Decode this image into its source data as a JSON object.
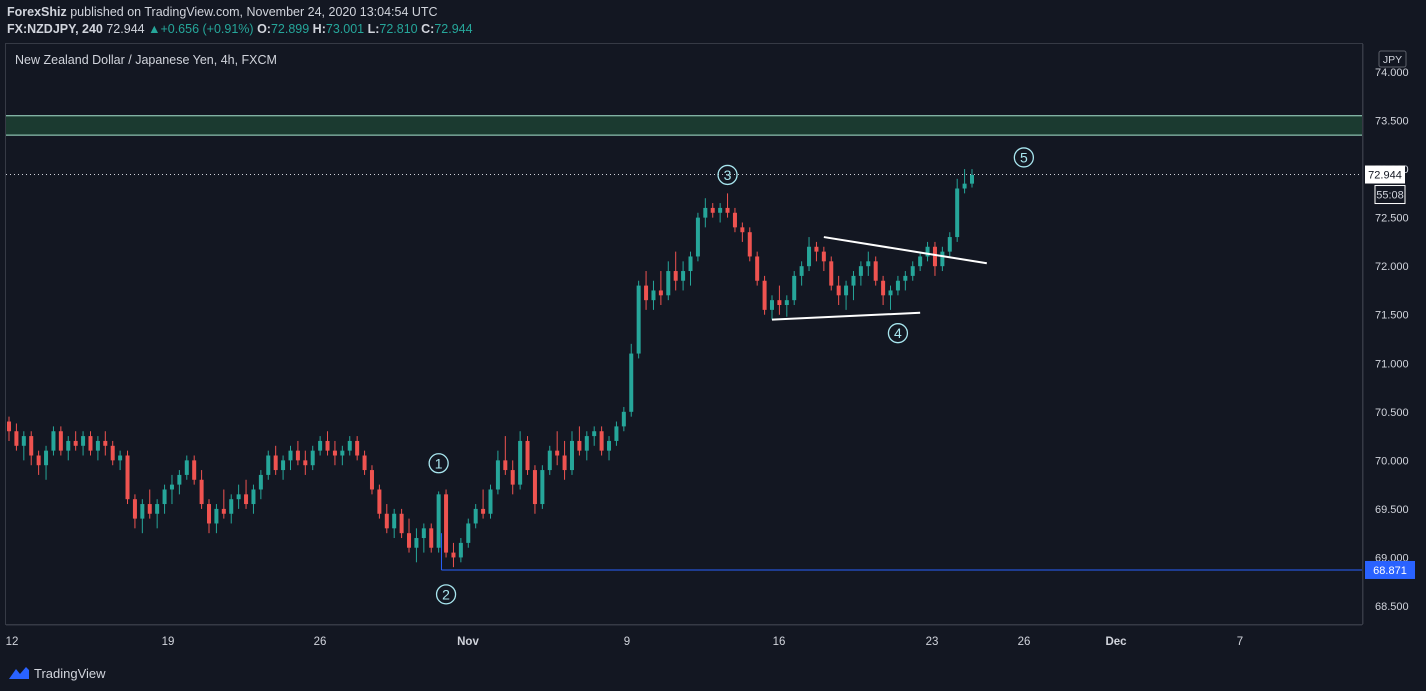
{
  "header": {
    "author": "ForexShiz",
    "published_text": "published on TradingView.com, November 24, 2020 13:04:54 UTC",
    "symbol": "FX:NZDJPY, 240",
    "last": "72.944",
    "change": "+0.656 (+0.91%)",
    "o_label": "O:",
    "o_value": "72.899",
    "h_label": "H:",
    "h_value": "73.001",
    "l_label": "L:",
    "l_value": "72.810",
    "c_label": "C:",
    "c_value": "72.944"
  },
  "chart_title": "New Zealand Dollar / Japanese Yen, 4h, FXCM",
  "footer": {
    "brand": "TradingView"
  },
  "colors": {
    "background": "#131722",
    "up": "#26a69a",
    "down": "#ef5350",
    "zone_fill": "#1b3a30",
    "zone_edge": "#a8e6cf",
    "support_line": "#2962ff",
    "wave_label": "#a8e6ef",
    "pattern_line": "#ffffff",
    "text": "#d1d4dc",
    "grid": "#363a45"
  },
  "chart_data": {
    "type": "candlestick",
    "title": "New Zealand Dollar / Japanese Yen, 4h, FXCM",
    "currency": "JPY",
    "y_ticks": [
      "74.000",
      "73.500",
      "73.000",
      "72.500",
      "72.000",
      "71.500",
      "71.000",
      "70.500",
      "70.000",
      "69.500",
      "69.000",
      "68.500"
    ],
    "ylim": [
      68.3,
      74.1
    ],
    "x_ticks": [
      "12",
      "19",
      "26",
      "Nov",
      "9",
      "16",
      "23",
      "26",
      "Dec",
      "7"
    ],
    "last_price": 72.944,
    "last_price_label": "72.944",
    "countdown_label": "55:08",
    "support_level": 68.871,
    "support_label": "68.871",
    "resistance_zone": [
      73.35,
      73.55
    ],
    "wave_labels": [
      {
        "label": "1",
        "price": 69.97
      },
      {
        "label": "2",
        "price": 68.62
      },
      {
        "label": "3",
        "price": 72.94
      },
      {
        "label": "4",
        "price": 71.31
      },
      {
        "label": "5",
        "price": 73.12
      }
    ],
    "triangle_upper_line": [
      72.3,
      72.03
    ],
    "triangle_lower_line": [
      71.45,
      71.52
    ],
    "candles_approx": [
      [
        70.4,
        70.45,
        70.2,
        70.3
      ],
      [
        70.3,
        70.38,
        70.1,
        70.15
      ],
      [
        70.15,
        70.3,
        70.0,
        70.25
      ],
      [
        70.25,
        70.3,
        69.95,
        70.05
      ],
      [
        70.05,
        70.1,
        69.85,
        69.95
      ],
      [
        69.95,
        70.15,
        69.8,
        70.1
      ],
      [
        70.1,
        70.35,
        70.05,
        70.3
      ],
      [
        70.3,
        70.35,
        70.05,
        70.1
      ],
      [
        70.1,
        70.25,
        70.0,
        70.2
      ],
      [
        70.2,
        70.3,
        70.1,
        70.15
      ],
      [
        70.15,
        70.3,
        70.05,
        70.25
      ],
      [
        70.25,
        70.3,
        70.05,
        70.1
      ],
      [
        70.1,
        70.25,
        70.0,
        70.2
      ],
      [
        70.2,
        70.3,
        70.05,
        70.15
      ],
      [
        70.15,
        70.2,
        69.95,
        70.0
      ],
      [
        70.0,
        70.1,
        69.9,
        70.05
      ],
      [
        70.05,
        70.1,
        69.55,
        69.6
      ],
      [
        69.6,
        69.65,
        69.3,
        69.4
      ],
      [
        69.4,
        69.6,
        69.25,
        69.55
      ],
      [
        69.55,
        69.7,
        69.4,
        69.45
      ],
      [
        69.45,
        69.6,
        69.3,
        69.55
      ],
      [
        69.55,
        69.75,
        69.45,
        69.7
      ],
      [
        69.7,
        69.85,
        69.55,
        69.75
      ],
      [
        69.75,
        69.9,
        69.65,
        69.85
      ],
      [
        69.85,
        70.05,
        69.8,
        70.0
      ],
      [
        70.0,
        70.05,
        69.75,
        69.8
      ],
      [
        69.8,
        69.9,
        69.5,
        69.55
      ],
      [
        69.55,
        69.6,
        69.25,
        69.35
      ],
      [
        69.35,
        69.55,
        69.25,
        69.5
      ],
      [
        69.5,
        69.7,
        69.4,
        69.45
      ],
      [
        69.45,
        69.65,
        69.35,
        69.6
      ],
      [
        69.6,
        69.75,
        69.5,
        69.65
      ],
      [
        69.65,
        69.8,
        69.5,
        69.55
      ],
      [
        69.55,
        69.75,
        69.45,
        69.7
      ],
      [
        69.7,
        69.9,
        69.6,
        69.85
      ],
      [
        69.85,
        70.1,
        69.8,
        70.05
      ],
      [
        70.05,
        70.15,
        69.85,
        69.9
      ],
      [
        69.9,
        70.05,
        69.8,
        70.0
      ],
      [
        70.0,
        70.15,
        69.9,
        70.1
      ],
      [
        70.1,
        70.2,
        69.95,
        70.0
      ],
      [
        70.0,
        70.1,
        69.85,
        69.95
      ],
      [
        69.95,
        70.15,
        69.9,
        70.1
      ],
      [
        70.1,
        70.25,
        70.05,
        70.2
      ],
      [
        70.2,
        70.3,
        70.05,
        70.1
      ],
      [
        70.1,
        70.2,
        69.95,
        70.05
      ],
      [
        70.05,
        70.15,
        69.95,
        70.1
      ],
      [
        70.1,
        70.25,
        70.05,
        70.2
      ],
      [
        70.2,
        70.25,
        70.0,
        70.05
      ],
      [
        70.05,
        70.1,
        69.85,
        69.9
      ],
      [
        69.9,
        69.95,
        69.65,
        69.7
      ],
      [
        69.7,
        69.75,
        69.4,
        69.45
      ],
      [
        69.45,
        69.55,
        69.25,
        69.3
      ],
      [
        69.3,
        69.5,
        69.2,
        69.45
      ],
      [
        69.45,
        69.5,
        69.2,
        69.25
      ],
      [
        69.25,
        69.4,
        69.05,
        69.1
      ],
      [
        69.1,
        69.3,
        68.95,
        69.2
      ],
      [
        69.2,
        69.35,
        69.05,
        69.3
      ],
      [
        69.3,
        69.35,
        69.05,
        69.1
      ],
      [
        69.1,
        69.68,
        69.05,
        69.65
      ],
      [
        69.65,
        69.7,
        69.0,
        69.05
      ],
      [
        69.05,
        69.15,
        68.9,
        69.0
      ],
      [
        69.0,
        69.2,
        68.95,
        69.15
      ],
      [
        69.15,
        69.4,
        69.1,
        69.35
      ],
      [
        69.35,
        69.55,
        69.3,
        69.5
      ],
      [
        69.5,
        69.7,
        69.4,
        69.45
      ],
      [
        69.45,
        69.75,
        69.4,
        69.7
      ],
      [
        69.7,
        70.1,
        69.65,
        70.0
      ],
      [
        70.0,
        70.25,
        69.85,
        69.9
      ],
      [
        69.9,
        70.0,
        69.65,
        69.75
      ],
      [
        69.75,
        70.3,
        69.7,
        70.2
      ],
      [
        70.2,
        70.25,
        69.85,
        69.9
      ],
      [
        69.9,
        69.95,
        69.45,
        69.55
      ],
      [
        69.55,
        69.95,
        69.5,
        69.9
      ],
      [
        69.9,
        70.15,
        69.85,
        70.1
      ],
      [
        70.1,
        70.3,
        69.95,
        70.05
      ],
      [
        70.05,
        70.2,
        69.8,
        69.9
      ],
      [
        69.9,
        70.3,
        69.85,
        70.2
      ],
      [
        70.2,
        70.35,
        70.05,
        70.1
      ],
      [
        70.1,
        70.3,
        70.0,
        70.25
      ],
      [
        70.25,
        70.35,
        70.15,
        70.3
      ],
      [
        70.3,
        70.35,
        70.05,
        70.1
      ],
      [
        70.1,
        70.25,
        70.0,
        70.2
      ],
      [
        70.2,
        70.4,
        70.15,
        70.35
      ],
      [
        70.35,
        70.55,
        70.3,
        70.5
      ],
      [
        70.5,
        71.2,
        70.45,
        71.1
      ],
      [
        71.1,
        71.85,
        71.05,
        71.8
      ],
      [
        71.8,
        71.95,
        71.55,
        71.65
      ],
      [
        71.65,
        71.85,
        71.55,
        71.75
      ],
      [
        71.75,
        71.95,
        71.6,
        71.7
      ],
      [
        71.7,
        72.05,
        71.65,
        71.95
      ],
      [
        71.95,
        72.15,
        71.75,
        71.85
      ],
      [
        71.85,
        72.05,
        71.75,
        71.95
      ],
      [
        71.95,
        72.15,
        71.8,
        72.1
      ],
      [
        72.1,
        72.55,
        72.05,
        72.5
      ],
      [
        72.5,
        72.7,
        72.4,
        72.6
      ],
      [
        72.6,
        72.65,
        72.5,
        72.55
      ],
      [
        72.55,
        72.65,
        72.45,
        72.6
      ],
      [
        72.6,
        72.75,
        72.5,
        72.55
      ],
      [
        72.55,
        72.6,
        72.35,
        72.4
      ],
      [
        72.4,
        72.45,
        72.25,
        72.35
      ],
      [
        72.35,
        72.4,
        72.05,
        72.1
      ],
      [
        72.1,
        72.15,
        71.8,
        71.85
      ],
      [
        71.85,
        71.9,
        71.5,
        71.55
      ],
      [
        71.55,
        71.7,
        71.45,
        71.65
      ],
      [
        71.65,
        71.8,
        71.5,
        71.6
      ],
      [
        71.6,
        71.7,
        71.48,
        71.65
      ],
      [
        71.65,
        71.95,
        71.6,
        71.9
      ],
      [
        71.9,
        72.05,
        71.8,
        72.0
      ],
      [
        72.0,
        72.3,
        71.95,
        72.2
      ],
      [
        72.2,
        72.25,
        72.05,
        72.15
      ],
      [
        72.15,
        72.2,
        71.95,
        72.05
      ],
      [
        72.05,
        72.1,
        71.75,
        71.8
      ],
      [
        71.8,
        71.9,
        71.6,
        71.7
      ],
      [
        71.7,
        71.85,
        71.55,
        71.8
      ],
      [
        71.8,
        71.95,
        71.65,
        71.9
      ],
      [
        71.9,
        72.05,
        71.8,
        72.0
      ],
      [
        72.0,
        72.15,
        71.9,
        72.05
      ],
      [
        72.05,
        72.1,
        71.8,
        71.85
      ],
      [
        71.85,
        71.9,
        71.6,
        71.7
      ],
      [
        71.7,
        71.8,
        71.55,
        71.75
      ],
      [
        71.75,
        71.9,
        71.7,
        71.85
      ],
      [
        71.85,
        71.95,
        71.75,
        71.9
      ],
      [
        71.9,
        72.05,
        71.85,
        72.0
      ],
      [
        72.0,
        72.15,
        71.95,
        72.1
      ],
      [
        72.1,
        72.25,
        72.05,
        72.2
      ],
      [
        72.2,
        72.25,
        71.9,
        72.0
      ],
      [
        72.0,
        72.2,
        71.95,
        72.15
      ],
      [
        72.15,
        72.35,
        72.1,
        72.3
      ],
      [
        72.3,
        72.9,
        72.25,
        72.8
      ],
      [
        72.8,
        73.0,
        72.75,
        72.85
      ],
      [
        72.85,
        73.0,
        72.81,
        72.94
      ]
    ]
  }
}
